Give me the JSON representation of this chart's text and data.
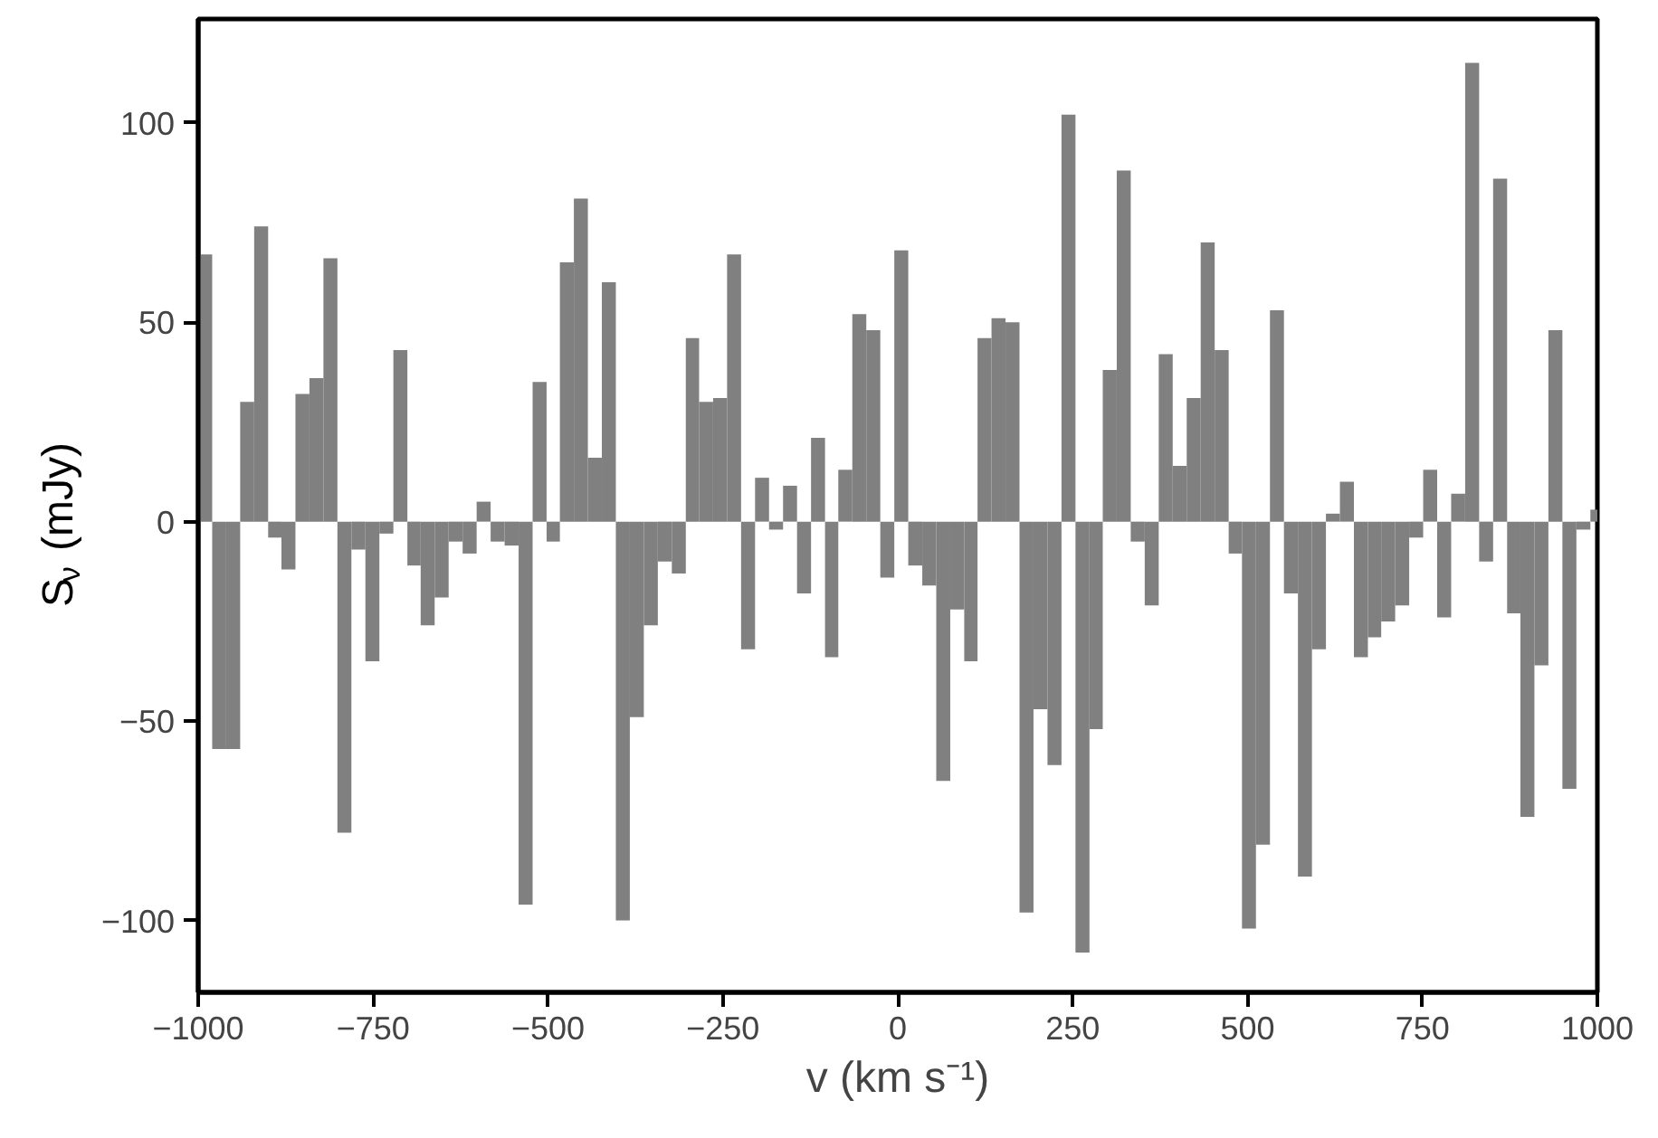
{
  "chart_data": {
    "type": "histogram",
    "xlabel": "v (km s⁻¹)",
    "ylabel": "S$_{ν}$ (mJy)",
    "bins": [
      -1000,
      -980,
      -960,
      -940,
      -920,
      -900,
      -881,
      -861,
      -841,
      -821,
      -801,
      -781,
      -761,
      -741,
      -721,
      -701,
      -682,
      -662,
      -642,
      -622,
      -602,
      -582,
      -562,
      -542,
      -522,
      -502,
      -483,
      -463,
      -443,
      -423,
      -403,
      -383,
      -363,
      -343,
      -323,
      -303,
      -284,
      -264,
      -244,
      -224,
      -204,
      -184,
      -164,
      -144,
      -124,
      -104,
      -85,
      -65,
      -45,
      -25,
      -5,
      15,
      35,
      55,
      75,
      95,
      114,
      134,
      154,
      174,
      194,
      214,
      234,
      254,
      274,
      293,
      313,
      333,
      353,
      373,
      393,
      413,
      433,
      453,
      473,
      492,
      512,
      532,
      552,
      572,
      592,
      612,
      632,
      652,
      672,
      691,
      711,
      731,
      751,
      771,
      791,
      811,
      831,
      851,
      871,
      890,
      910,
      930,
      950,
      970,
      990,
      1010
    ],
    "values": [
      67,
      -57,
      -57,
      30,
      74,
      -4,
      -12,
      32,
      36,
      66,
      -78,
      -7,
      -35,
      -3,
      43,
      -11,
      -26,
      -19,
      -5,
      -8,
      5,
      -5,
      -6,
      -96,
      35,
      -5,
      65,
      81,
      16,
      60,
      -100,
      -49,
      -26,
      -10,
      -13,
      46,
      30,
      31,
      67,
      -32,
      11,
      -2,
      9,
      -18,
      21,
      -34,
      13,
      52,
      48,
      -14,
      68,
      -11,
      -16,
      -65,
      -22,
      -35,
      46,
      51,
      50,
      -98,
      -47,
      -61,
      102,
      -108,
      -52,
      38,
      88,
      -5,
      -21,
      42,
      14,
      31,
      70,
      43,
      -8,
      -102,
      -81,
      53,
      -18,
      -89,
      -32,
      2,
      10,
      -34,
      -29,
      -25,
      -21,
      -4,
      13,
      -24,
      7,
      115,
      -10,
      86,
      -23,
      -74,
      -36,
      48,
      -67,
      -2,
      3
    ],
    "color": "#808080",
    "xlim": [
      -1000,
      1000
    ],
    "xticks": [
      {
        "value": -1000,
        "label": "−1000"
      },
      {
        "value": -750,
        "label": "−750"
      },
      {
        "value": -500,
        "label": "−500"
      },
      {
        "value": -250,
        "label": "−250"
      },
      0,
      250,
      500,
      750,
      1000
    ],
    "ylim": [
      -118,
      126
    ],
    "yticks": [
      {
        "value": -100,
        "label": "−100"
      },
      {
        "value": -50,
        "label": "−50"
      },
      0,
      50,
      100
    ],
    "grid": false
  }
}
